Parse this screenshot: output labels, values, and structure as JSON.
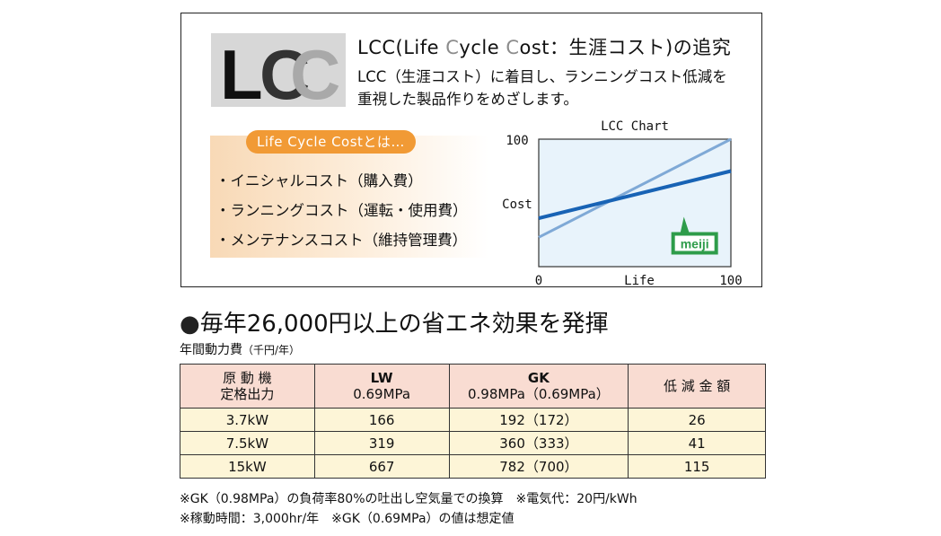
{
  "lcc": {
    "logo": "LCC",
    "title_parts": [
      "LCC(Life ",
      "C",
      "ycle ",
      "C",
      "ost：生涯コスト)の追究"
    ],
    "desc_line1": "LCC（生涯コスト）に着目し、ランニングコスト低減を",
    "desc_line2": "重視した製品作りをめざします。",
    "lifecycle_tag": "Life Cycle Costとは…",
    "lifecycle_items": [
      "・イニシャルコスト（購入費）",
      "・ランニングコスト（運転・使用費）",
      "・メンテナンスコスト（維持管理費）"
    ]
  },
  "chart_data": {
    "type": "line",
    "title": "LCC Chart",
    "xlabel": "Life",
    "ylabel": "Cost",
    "xlim": [
      0,
      100
    ],
    "ylim": [
      0,
      100
    ],
    "x_ticks": [
      "0",
      "100"
    ],
    "y_ticks": [
      "100"
    ],
    "series": [
      {
        "name": "",
        "color": "#7fa9d6",
        "x": [
          0,
          100
        ],
        "y": [
          23,
          100
        ]
      },
      {
        "name": "meiji",
        "color": "#1863b5",
        "x": [
          0,
          100
        ],
        "y": [
          38,
          75
        ]
      }
    ],
    "badge": "meiji",
    "badge_color": "#2e9c4a"
  },
  "section": {
    "bullet": "●",
    "title": "毎年26,000円以上の省エネ効果を発揮",
    "caption": "年間動力費",
    "caption_unit": "（千円/年）"
  },
  "table": {
    "headers": {
      "col1_line1": "原 動 機",
      "col1_line2": "定格出力",
      "lw": "LW",
      "lw_sub": "0.69MPa",
      "gk": "GK",
      "gk_sub": "0.98MPa（0.69MPa）",
      "reduction": "低 減 金 額"
    },
    "rows": [
      {
        "output": "3.7kW",
        "lw": "166",
        "gk": "192（172）",
        "reduction": "26"
      },
      {
        "output": "7.5kW",
        "lw": "319",
        "gk": "360（333）",
        "reduction": "41"
      },
      {
        "output": "15kW",
        "lw": "667",
        "gk": "782（700）",
        "reduction": "115"
      }
    ]
  },
  "notes": {
    "line1": "※GK（0.98MPa）の負荷率80%の吐出し空気量での換算　※電気代：20円/kWh",
    "line2": "※稼動時間：3,000hr/年　※GK（0.69MPa）の値は想定値"
  }
}
